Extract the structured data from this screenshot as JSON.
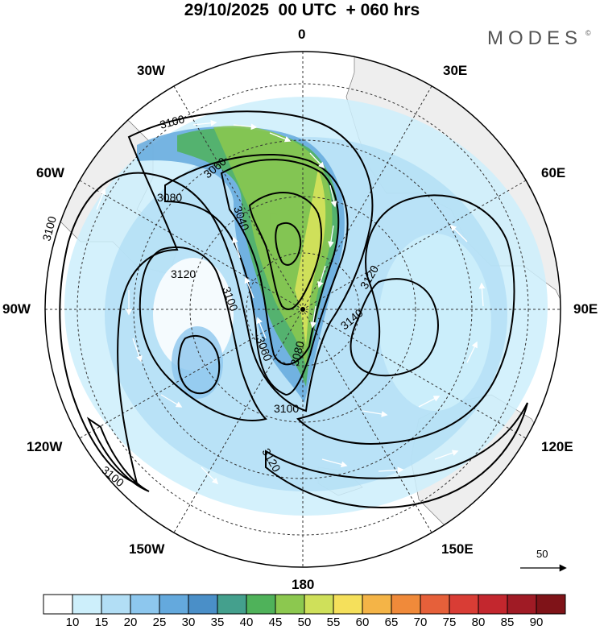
{
  "title": "29/10/2025  00 UTC  + 060 hrs",
  "brand": {
    "name": "MODES",
    "mark": "©"
  },
  "longitude_labels": {
    "n": "0",
    "s": "180",
    "e": "90E",
    "w": "90W",
    "ne30": "30E",
    "ne60": "60E",
    "nw30": "30W",
    "nw60": "60W",
    "se120": "120E",
    "se150": "150E",
    "sw120": "120W",
    "sw150": "150W"
  },
  "contour_labels": [
    "3100",
    "3060",
    "3080",
    "3040",
    "3120",
    "3100",
    "3060",
    "3080",
    "3140",
    "3120",
    "3100",
    "3120",
    "3100",
    "3100"
  ],
  "reference_vector": {
    "value": "50"
  },
  "colorbar": {
    "ticks": [
      "10",
      "15",
      "20",
      "25",
      "30",
      "35",
      "40",
      "45",
      "50",
      "55",
      "60",
      "65",
      "70",
      "75",
      "80",
      "85",
      "90"
    ],
    "colors": [
      "#ffffff",
      "#cdeffb",
      "#b2def5",
      "#8dc7ee",
      "#64a9dd",
      "#4a8fc8",
      "#44a08d",
      "#4fb25a",
      "#8cc84f",
      "#cfe05a",
      "#f5e05b",
      "#f4b447",
      "#f08a3a",
      "#e6603a",
      "#d93d35",
      "#c3272e",
      "#a01b25",
      "#7f1318"
    ]
  },
  "colors": {
    "land": "#eeeeee",
    "contour": "#000000",
    "grid": "#333333",
    "jet_core": "#8cc84f"
  }
}
